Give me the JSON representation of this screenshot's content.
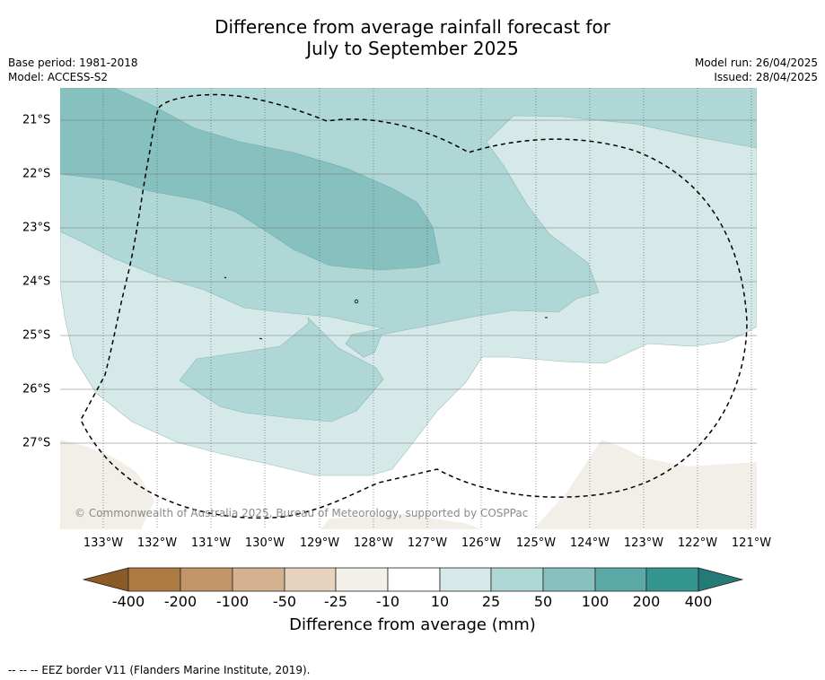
{
  "title_line1": "Difference from average rainfall forecast for",
  "title_line2": "July to September 2025",
  "meta_left": {
    "base_period": "Base period: 1981-2018",
    "model": "Model: ACCESS-S2"
  },
  "meta_right": {
    "model_run": "Model run: 26/04/2025",
    "issued": "Issued: 28/04/2025"
  },
  "map": {
    "lon_labels": [
      "133°W",
      "132°W",
      "131°W",
      "130°W",
      "129°W",
      "128°W",
      "127°W",
      "126°W",
      "125°W",
      "124°W",
      "123°W",
      "122°W",
      "121°W"
    ],
    "lat_labels": [
      "21°S",
      "22°S",
      "23°S",
      "24°S",
      "25°S",
      "26°S",
      "27°S"
    ],
    "copyright": "© Commonwealth of Australia 2025, Bureau of Meteorology, supported by COSPPac",
    "colors": {
      "land": "#f2eee8",
      "c10_25": "#d5e9e8",
      "c25_50": "#aed7d6",
      "c50_100": "#86c1c0",
      "eez": "#000000"
    }
  },
  "colorbar": {
    "ticks": [
      "-400",
      "-200",
      "-100",
      "-50",
      "-25",
      "-10",
      "10",
      "25",
      "50",
      "100",
      "200",
      "400"
    ],
    "colors": [
      "#8c5a25",
      "#ad7a42",
      "#c29468",
      "#d4b28f",
      "#e6d2bf",
      "#f3f0ea",
      "#ffffff",
      "#d5e9e8",
      "#aed7d6",
      "#86c1c0",
      "#5aa9a6",
      "#34968f",
      "#237a76"
    ],
    "title": "Difference from average (mm)"
  },
  "footnote": "--  --  -- EEZ border V11 (Flanders Marine Institute, 2019)."
}
